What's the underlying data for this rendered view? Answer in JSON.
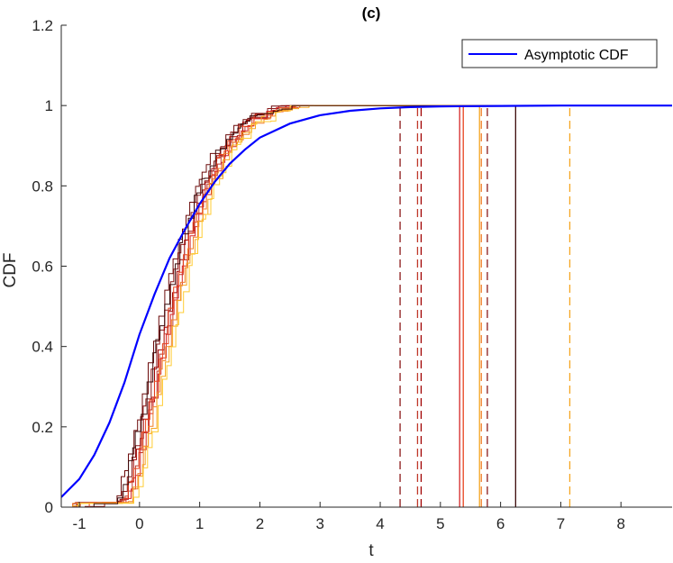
{
  "chart_data": {
    "type": "line",
    "title": "(c)",
    "xlabel": "t",
    "ylabel": "CDF",
    "xlim": [
      -1.3,
      8.85
    ],
    "ylim": [
      0,
      1.2
    ],
    "xticks": [
      -1,
      0,
      1,
      2,
      3,
      4,
      5,
      6,
      7,
      8
    ],
    "yticks": [
      0,
      0.2,
      0.4,
      0.6,
      0.8,
      1,
      1.2
    ],
    "xtick_labels": [
      "-1",
      "0",
      "1",
      "2",
      "3",
      "4",
      "5",
      "6",
      "7",
      "8"
    ],
    "ytick_labels": [
      "0",
      "0.2",
      "0.4",
      "0.6",
      "0.8",
      "1",
      "1.2"
    ],
    "grid": false,
    "legend": {
      "position": "top-right",
      "entries": [
        "Asymptotic CDF"
      ]
    },
    "asymptotic_cdf": {
      "name": "Asymptotic CDF",
      "color": "#0000ff",
      "x": [
        -1.3,
        -1.0,
        -0.75,
        -0.5,
        -0.25,
        0,
        0.25,
        0.5,
        0.75,
        1.0,
        1.25,
        1.5,
        1.75,
        2.0,
        2.5,
        3.0,
        3.5,
        4.0,
        4.5,
        5.0,
        6.0,
        7.0,
        8.0,
        8.85
      ],
      "y": [
        0.025,
        0.07,
        0.13,
        0.21,
        0.31,
        0.43,
        0.53,
        0.62,
        0.69,
        0.755,
        0.81,
        0.855,
        0.89,
        0.92,
        0.955,
        0.976,
        0.987,
        0.993,
        0.996,
        0.998,
        0.999,
        1.0,
        1.0,
        1.0
      ]
    },
    "empirical_cdfs": [
      {
        "color": "#6b0a0a",
        "shift": -0.12
      },
      {
        "color": "#8b1a1a",
        "shift": -0.05
      },
      {
        "color": "#a00000",
        "shift": 0.0
      },
      {
        "color": "#c0392b",
        "shift": 0.04
      },
      {
        "color": "#d62728",
        "shift": 0.08
      },
      {
        "color": "#e8431f",
        "shift": 0.02
      },
      {
        "color": "#f07f2a",
        "shift": 0.1
      },
      {
        "color": "#f5a623",
        "shift": 0.14
      },
      {
        "color": "#ffcc33",
        "shift": 0.18
      },
      {
        "color": "#3b0a0a",
        "shift": -0.08
      }
    ],
    "vertical_lines": [
      {
        "x": 4.33,
        "color": "#8b1a1a",
        "style": "dashed"
      },
      {
        "x": 4.62,
        "color": "#c0392b",
        "style": "dashed"
      },
      {
        "x": 4.68,
        "color": "#a00000",
        "style": "dashed"
      },
      {
        "x": 5.32,
        "color": "#d62728",
        "style": "solid"
      },
      {
        "x": 5.38,
        "color": "#e8431f",
        "style": "solid"
      },
      {
        "x": 5.65,
        "color": "#f5a623",
        "style": "solid"
      },
      {
        "x": 5.68,
        "color": "#f07f2a",
        "style": "dashed"
      },
      {
        "x": 5.78,
        "color": "#8b1a1a",
        "style": "dashed"
      },
      {
        "x": 6.25,
        "color": "#3b0a0a",
        "style": "solid"
      },
      {
        "x": 7.15,
        "color": "#f5a623",
        "style": "dashed"
      }
    ]
  }
}
